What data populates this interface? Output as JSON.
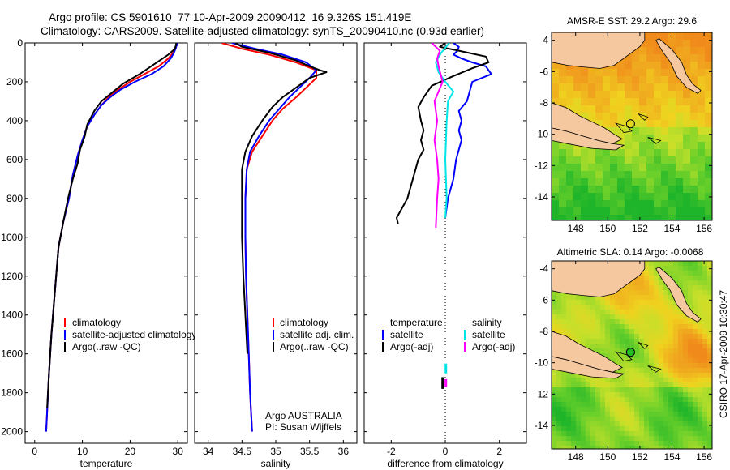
{
  "header": {
    "title_line1": "Argo profile: CS 5901610_77 10-Apr-2009 20090412_16 9.326S 151.419E",
    "title_line2": "Climatology: CARS2009. Satellite-adjusted climatology: synTS_20090410.nc (0.93d earlier)"
  },
  "footer": {
    "credit": "CSIRO 17-Apr-2009 10:30:47",
    "argo_label": "Argo AUSTRALIA",
    "pi_label": "PI: Susan Wijffels"
  },
  "colors": {
    "climatology": "#ff0000",
    "satellite": "#0000ff",
    "argo": "#000000",
    "sat_diff": "#00e5e5",
    "argo_diff": "#ff00ff",
    "land": "#f5c8a0"
  },
  "chart_data": [
    {
      "type": "line",
      "id": "temperature",
      "xlabel": "temperature",
      "xlim": [
        -2,
        32
      ],
      "ylim": [
        2060,
        0
      ],
      "xticks": [
        0,
        10,
        20,
        30
      ],
      "yticks": [
        0,
        200,
        400,
        600,
        800,
        1000,
        1200,
        1400,
        1600,
        1800,
        2000
      ],
      "legend": [
        "climatology",
        "satellite-adjusted climatology",
        "Argo(..raw -QC)"
      ],
      "series": [
        {
          "name": "climatology",
          "color": "#ff0000",
          "x": [
            29.8,
            29.5,
            29.0,
            28.0,
            26.0,
            23.0,
            20.0,
            17.5,
            15.5,
            14.0,
            12.5,
            11.0,
            10.0,
            9.0,
            8.0,
            7.2,
            6.0,
            5.0,
            4.5,
            4.0,
            3.5,
            3.0,
            2.6,
            2.4
          ],
          "y": [
            0,
            25,
            50,
            80,
            120,
            160,
            200,
            240,
            280,
            320,
            370,
            430,
            500,
            580,
            680,
            800,
            920,
            1050,
            1200,
            1350,
            1500,
            1700,
            1900,
            2000
          ]
        },
        {
          "name": "satellite-adjusted climatology",
          "color": "#0000ff",
          "x": [
            29.9,
            29.6,
            29.2,
            28.5,
            27.0,
            24.5,
            21.0,
            18.0,
            15.8,
            14.0,
            12.5,
            11.0,
            10.0,
            9.0,
            8.0,
            7.2,
            6.0,
            5.0,
            4.5,
            4.0,
            3.5,
            3.0,
            2.6,
            2.4
          ],
          "y": [
            0,
            25,
            50,
            80,
            120,
            160,
            200,
            240,
            280,
            320,
            370,
            430,
            500,
            580,
            680,
            800,
            920,
            1050,
            1200,
            1350,
            1500,
            1700,
            1900,
            2000
          ]
        },
        {
          "name": "Argo(..raw -QC)",
          "color": "#000000",
          "x": [
            29.7,
            29.4,
            28.0,
            25.0,
            22.0,
            18.5,
            16.0,
            14.0,
            12.5,
            11.0,
            10.5,
            9.5,
            9.0,
            8.0,
            7.0,
            6.0,
            5.0,
            4.5,
            4.0,
            3.5,
            3.0,
            2.6
          ],
          "y": [
            0,
            30,
            60,
            110,
            160,
            210,
            260,
            300,
            350,
            420,
            480,
            550,
            620,
            700,
            800,
            920,
            1050,
            1200,
            1350,
            1500,
            1700,
            1880
          ]
        }
      ]
    },
    {
      "type": "line",
      "id": "salinity",
      "xlabel": "salinity",
      "xlim": [
        33.8,
        36.2
      ],
      "ylim": [
        2060,
        0
      ],
      "xticks": [
        34,
        34.5,
        35,
        35.5,
        36
      ],
      "legend": [
        "climatology",
        "satellite adj. clim.",
        "Argo(..raw -QC)"
      ],
      "series": [
        {
          "name": "climatology",
          "color": "#ff0000",
          "x": [
            34.2,
            34.5,
            34.9,
            35.3,
            35.6,
            35.6,
            35.45,
            35.3,
            35.1,
            34.95,
            34.8,
            34.65,
            34.57,
            34.55,
            34.55,
            34.56,
            34.58,
            34.6,
            34.62,
            34.65
          ],
          "y": [
            0,
            30,
            60,
            100,
            140,
            180,
            230,
            280,
            340,
            400,
            480,
            560,
            650,
            800,
            1000,
            1200,
            1400,
            1600,
            1800,
            2000
          ]
        },
        {
          "name": "satellite adj. clim.",
          "color": "#0000ff",
          "x": [
            34.35,
            34.7,
            35.1,
            35.45,
            35.6,
            35.5,
            35.35,
            35.2,
            35.05,
            34.9,
            34.75,
            34.62,
            34.57,
            34.55,
            34.55,
            34.56,
            34.58,
            34.6,
            34.62,
            34.65
          ],
          "y": [
            0,
            30,
            60,
            100,
            140,
            180,
            230,
            280,
            340,
            400,
            480,
            560,
            650,
            800,
            1000,
            1200,
            1400,
            1600,
            1800,
            2000
          ]
        },
        {
          "name": "Argo(..raw -QC)",
          "color": "#000000",
          "x": [
            34.4,
            34.5,
            34.9,
            35.3,
            35.5,
            35.65,
            35.75,
            35.5,
            35.3,
            35.1,
            34.95,
            34.8,
            34.65,
            34.55,
            34.5,
            34.5,
            34.5,
            34.52,
            34.55,
            34.58
          ],
          "y": [
            0,
            20,
            50,
            90,
            120,
            140,
            150,
            180,
            230,
            280,
            330,
            400,
            480,
            560,
            650,
            800,
            1000,
            1200,
            1400,
            1600
          ]
        }
      ]
    },
    {
      "type": "line",
      "id": "difference",
      "xlabel": "difference from climatology",
      "xlim": [
        -3,
        3
      ],
      "ylim": [
        2060,
        0
      ],
      "xticks": [
        -2,
        0,
        2
      ],
      "legend_temperature": {
        "heading": "temperature",
        "items": [
          "satellite",
          "Argo(-adj)"
        ]
      },
      "legend_salinity": {
        "heading": "salinity",
        "items": [
          "satellite",
          "Argo(-adj)"
        ]
      },
      "series": [
        {
          "name": "temperature satellite",
          "color": "#0000ff",
          "x": [
            0.3,
            0.5,
            0.45,
            0.3,
            0.6,
            1.0,
            1.5,
            1.7,
            1.0,
            0.9,
            0.8,
            0.5,
            0.6,
            0.5,
            0.6,
            0.4,
            0.3,
            0.1,
            0.0
          ],
          "y": [
            0,
            20,
            40,
            60,
            80,
            100,
            120,
            160,
            200,
            250,
            300,
            350,
            400,
            450,
            500,
            600,
            700,
            800,
            900
          ]
        },
        {
          "name": "temperature Argo(-adj)",
          "color": "#000000",
          "x": [
            0.0,
            -0.2,
            0.5,
            1.5,
            1.6,
            1.0,
            0.3,
            -0.5,
            -0.8,
            -1.0,
            -0.9,
            -0.8,
            -0.9,
            -0.8,
            -1.0,
            -1.2,
            -1.4,
            -1.6,
            -1.8,
            -1.75
          ],
          "y": [
            0,
            20,
            40,
            70,
            100,
            130,
            170,
            220,
            280,
            330,
            400,
            450,
            500,
            550,
            600,
            700,
            800,
            850,
            900,
            930
          ]
        },
        {
          "name": "salinity satellite",
          "color": "#00e5e5",
          "x": [
            0.15,
            -0.15,
            -0.35,
            -0.25,
            0.0,
            0.3,
            0.1,
            0.05,
            0.0,
            0.05,
            0.0
          ],
          "y": [
            0,
            50,
            100,
            150,
            200,
            250,
            300,
            400,
            600,
            800,
            900
          ]
        },
        {
          "name": "salinity Argo(-adj)",
          "color": "#ff00ff",
          "x": [
            -0.5,
            -0.2,
            -0.3,
            -0.25,
            -0.1,
            -0.4,
            -0.3,
            -0.4,
            -0.3,
            -0.25,
            -0.3,
            -0.35
          ],
          "y": [
            0,
            40,
            80,
            120,
            200,
            300,
            400,
            500,
            600,
            700,
            800,
            950
          ]
        },
        {
          "name": "deep salinity satellite",
          "color": "#00e5e5",
          "x": [
            0.02,
            0.02
          ],
          "y": [
            1650,
            1700
          ]
        },
        {
          "name": "deep salinity Argo(-adj)",
          "color": "#ff00ff",
          "x": [
            0.02,
            0.02
          ],
          "y": [
            1730,
            1770
          ]
        },
        {
          "name": "deep temperature Argo(-adj)",
          "color": "#000000",
          "x": [
            -0.1,
            -0.1
          ],
          "y": [
            1720,
            1780
          ]
        }
      ]
    },
    {
      "type": "heatmap",
      "id": "sst_map",
      "title": "AMSR-E SST: 29.2 Argo: 29.6",
      "xlim": [
        146.5,
        156.5
      ],
      "ylim": [
        -15.5,
        -3.5
      ],
      "xticks": [
        148,
        150,
        152,
        154,
        156
      ],
      "yticks": [
        -4,
        -6,
        -8,
        -10,
        -12,
        -14
      ],
      "marker": {
        "lon": 151.42,
        "lat": -9.33,
        "fill": "none"
      }
    },
    {
      "type": "heatmap",
      "id": "sla_map",
      "title": "Altimetric SLA: 0.14 Argo: -0.0068",
      "xlim": [
        146.5,
        156.5
      ],
      "ylim": [
        -15.5,
        -3.5
      ],
      "xticks": [
        148,
        150,
        152,
        154,
        156
      ],
      "yticks": [
        -4,
        -6,
        -8,
        -10,
        -12,
        -14
      ],
      "marker": {
        "lon": 151.42,
        "lat": -9.33,
        "fill": "#22bb22"
      }
    }
  ]
}
